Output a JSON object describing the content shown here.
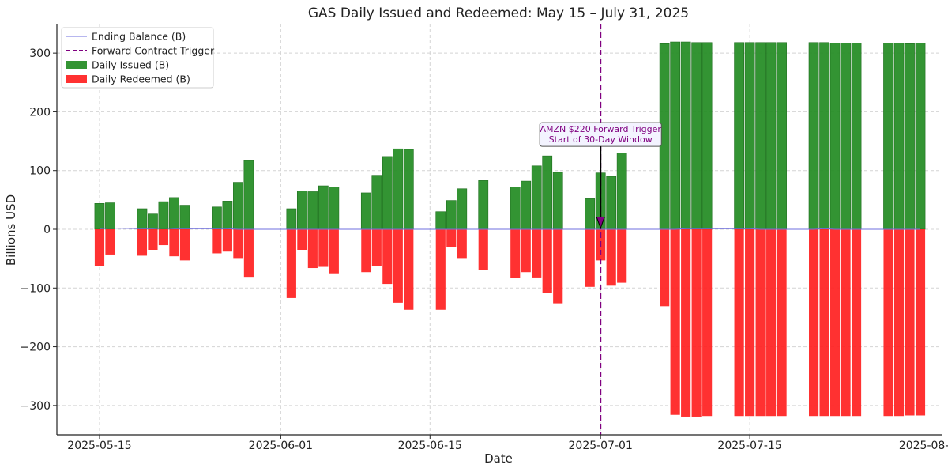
{
  "chart_data": {
    "type": "bar",
    "title": "GAS Daily Issued and Redeemed: May 15 – July 31, 2025",
    "xlabel": "Date",
    "ylabel": "Billions USD",
    "ylim": [
      -350,
      350
    ],
    "yticks": [
      -300,
      -200,
      -100,
      0,
      100,
      200,
      300
    ],
    "ytick_labels": [
      "−300",
      "−200",
      "−100",
      "0",
      "100",
      "200",
      "300"
    ],
    "xlim": [
      "2025-05-11",
      "2025-08-02"
    ],
    "xticks": [
      "2025-05-15",
      "2025-06-01",
      "2025-06-15",
      "2025-07-01",
      "2025-07-15",
      "2025-08-01"
    ],
    "xtick_labels": [
      "2025-05-15",
      "2025-06-01",
      "2025-06-15",
      "2025-07-01",
      "2025-07-15",
      "2025-08-01"
    ],
    "grid": true,
    "legend_position": "top-left",
    "legend": [
      {
        "label": "Ending Balance (B)",
        "kind": "line",
        "color": "#6f6fdf"
      },
      {
        "label": "Forward Contract Trigger",
        "kind": "dashed",
        "color": "#800080"
      },
      {
        "label": "Daily Issued (B)",
        "kind": "patch",
        "color": "#228B22"
      },
      {
        "label": "Daily Redeemed (B)",
        "kind": "patch",
        "color": "#FF2020"
      }
    ],
    "x": [
      "2025-05-15",
      "2025-05-16",
      "2025-05-19",
      "2025-05-20",
      "2025-05-21",
      "2025-05-22",
      "2025-05-23",
      "2025-05-26",
      "2025-05-27",
      "2025-05-28",
      "2025-05-29",
      "2025-06-02",
      "2025-06-03",
      "2025-06-04",
      "2025-06-05",
      "2025-06-06",
      "2025-06-09",
      "2025-06-10",
      "2025-06-11",
      "2025-06-12",
      "2025-06-13",
      "2025-06-16",
      "2025-06-17",
      "2025-06-18",
      "2025-06-20",
      "2025-06-23",
      "2025-06-24",
      "2025-06-25",
      "2025-06-26",
      "2025-06-27",
      "2025-06-30",
      "2025-07-01",
      "2025-07-02",
      "2025-07-03",
      "2025-07-07",
      "2025-07-08",
      "2025-07-09",
      "2025-07-10",
      "2025-07-11",
      "2025-07-14",
      "2025-07-15",
      "2025-07-16",
      "2025-07-17",
      "2025-07-18",
      "2025-07-21",
      "2025-07-22",
      "2025-07-23",
      "2025-07-24",
      "2025-07-25",
      "2025-07-28",
      "2025-07-29",
      "2025-07-30",
      "2025-07-31"
    ],
    "series": [
      {
        "name": "Daily Issued (B)",
        "color": "#228B22",
        "values": [
          44,
          45,
          35,
          26,
          47,
          54,
          41,
          38,
          48,
          80,
          117,
          35,
          65,
          64,
          74,
          72,
          62,
          92,
          124,
          137,
          136,
          30,
          49,
          69,
          83,
          72,
          82,
          108,
          125,
          97,
          52,
          96,
          90,
          130,
          316,
          319,
          319,
          318,
          318,
          318,
          318,
          318,
          318,
          318,
          318,
          318,
          317,
          317,
          317,
          317,
          317,
          316,
          317
        ]
      },
      {
        "name": "Daily Redeemed (B)",
        "color": "#FF2020",
        "values": [
          -62,
          -43,
          -45,
          -35,
          -27,
          -46,
          -53,
          -41,
          -38,
          -49,
          -81,
          -117,
          -35,
          -66,
          -64,
          -75,
          -73,
          -63,
          -93,
          -125,
          -137,
          -137,
          -30,
          -49,
          -70,
          -83,
          -73,
          -82,
          -109,
          -126,
          -98,
          -53,
          -96,
          -91,
          -131,
          -316,
          -319,
          -319,
          -318,
          -318,
          -318,
          -318,
          -318,
          -318,
          -318,
          -318,
          -318,
          -318,
          -318,
          -318,
          -318,
          -317,
          -317
        ]
      },
      {
        "name": "Ending Balance (B)",
        "color": "#6f6fdf",
        "values": [
          1,
          2,
          1,
          1,
          2,
          1,
          1,
          1,
          1,
          0,
          0,
          0,
          0,
          0,
          0,
          0,
          0,
          0,
          0,
          0,
          0,
          0,
          0,
          0,
          0,
          0,
          0,
          0,
          0,
          0,
          0,
          0,
          0,
          0,
          0,
          0,
          1,
          1,
          1,
          1,
          1,
          0,
          0,
          0,
          0,
          1,
          0,
          0,
          0,
          0,
          0,
          0,
          0
        ]
      }
    ],
    "trigger": {
      "date": "2025-07-01",
      "color": "#800080",
      "style": "dashed"
    },
    "annotations": [
      {
        "lines": [
          "AMZN $220 Forward Trigger",
          "Start of 30-Day Window"
        ],
        "date": "2025-07-01",
        "value": 160,
        "arrow_to_value": 2,
        "color": "#800080"
      }
    ]
  }
}
